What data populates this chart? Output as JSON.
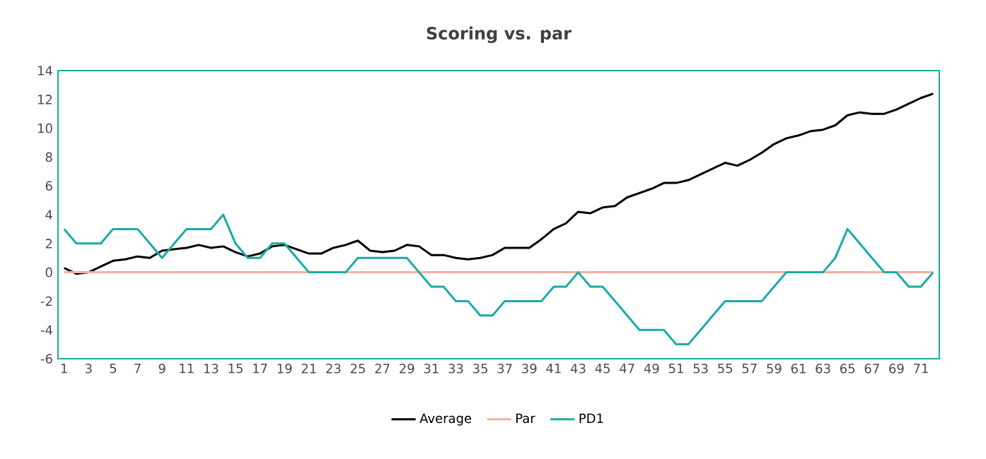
{
  "chart_data": {
    "type": "line",
    "title": "Scoring vs. par",
    "categories": [
      "1",
      null,
      "3",
      null,
      "5",
      null,
      "7",
      null,
      "9",
      null,
      "11",
      null,
      "13",
      null,
      "15",
      null,
      "17",
      null,
      "19",
      null,
      "21",
      null,
      "23",
      null,
      "25",
      null,
      "27",
      null,
      "29",
      null,
      "31",
      null,
      "33",
      null,
      "35",
      null,
      "37",
      null,
      "39",
      null,
      "41",
      null,
      "43",
      null,
      "45",
      null,
      "47",
      null,
      "49",
      null,
      "51",
      null,
      "53",
      null,
      "55",
      null,
      "57",
      null,
      "59",
      null,
      "61",
      null,
      "63",
      null,
      "65",
      null,
      "67",
      null,
      "69",
      null,
      "71",
      null
    ],
    "series": [
      {
        "name": "Average",
        "color": "#000000",
        "values": [
          0.3,
          -0.1,
          0.0,
          0.4,
          0.8,
          0.9,
          1.1,
          1.0,
          1.5,
          1.6,
          1.7,
          1.9,
          1.7,
          1.8,
          1.4,
          1.1,
          1.3,
          1.8,
          1.9,
          1.6,
          1.3,
          1.3,
          1.7,
          1.9,
          2.2,
          1.5,
          1.4,
          1.5,
          1.9,
          1.8,
          1.2,
          1.2,
          1.0,
          0.9,
          1.0,
          1.2,
          1.7,
          1.7,
          1.7,
          2.3,
          3.0,
          3.4,
          4.2,
          4.1,
          4.5,
          4.6,
          5.2,
          5.5,
          5.8,
          6.2,
          6.2,
          6.4,
          6.8,
          7.2,
          7.6,
          7.4,
          7.8,
          8.3,
          8.9,
          9.3,
          9.5,
          9.8,
          9.9,
          10.2,
          10.9,
          11.1,
          11.0,
          11.0,
          11.3,
          11.7,
          12.1,
          12.4
        ]
      },
      {
        "name": "Par",
        "color": "#f4b0a0",
        "values": [
          0,
          0,
          0,
          0,
          0,
          0,
          0,
          0,
          0,
          0,
          0,
          0,
          0,
          0,
          0,
          0,
          0,
          0,
          0,
          0,
          0,
          0,
          0,
          0,
          0,
          0,
          0,
          0,
          0,
          0,
          0,
          0,
          0,
          0,
          0,
          0,
          0,
          0,
          0,
          0,
          0,
          0,
          0,
          0,
          0,
          0,
          0,
          0,
          0,
          0,
          0,
          0,
          0,
          0,
          0,
          0,
          0,
          0,
          0,
          0,
          0,
          0,
          0,
          0,
          0,
          0,
          0,
          0,
          0,
          0,
          0,
          0
        ]
      },
      {
        "name": "PD1",
        "color": "#1aaba5",
        "values": [
          3,
          2,
          2,
          2,
          3,
          3,
          3,
          2,
          1,
          2,
          3,
          3,
          3,
          4,
          2,
          1,
          1,
          2,
          2,
          1,
          0,
          0,
          0,
          0,
          1,
          1,
          1,
          1,
          1,
          0,
          -1,
          -1,
          -2,
          -2,
          -3,
          -3,
          -2,
          -2,
          -2,
          -2,
          -1,
          -1,
          0,
          -1,
          -1,
          -2,
          -3,
          -4,
          -4,
          -4,
          -5,
          -5,
          -4,
          -3,
          -2,
          -2,
          -2,
          -2,
          -1,
          0,
          0,
          0,
          0,
          1,
          3,
          2,
          1,
          0,
          0,
          -1,
          -1,
          0
        ]
      }
    ],
    "ylim": [
      -6,
      14
    ],
    "yticks": [
      -6,
      -4,
      -2,
      0,
      2,
      4,
      6,
      8,
      10,
      12,
      14
    ],
    "grid": false,
    "legend": "bottom",
    "marker": "none",
    "line_style": "solid"
  }
}
